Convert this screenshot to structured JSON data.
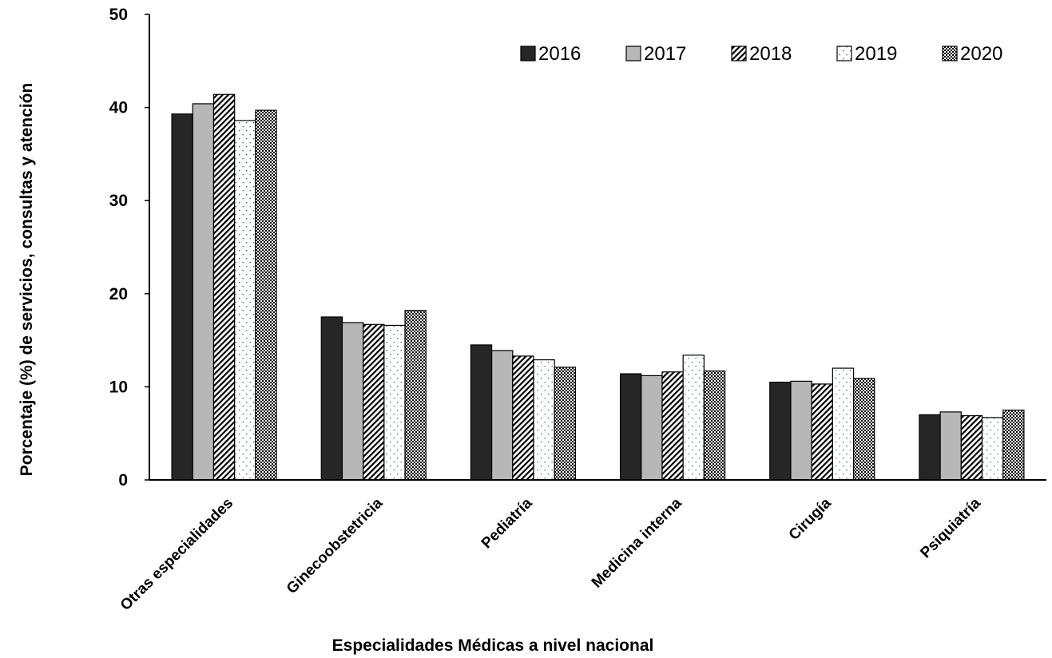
{
  "chart_data": {
    "type": "bar",
    "title": "",
    "xlabel": "Especialidades Médicas a nivel nacional",
    "ylabel": "Porcentaje (%) de servicios, consultas y atención",
    "ylim": [
      0,
      50
    ],
    "yticks": [
      0,
      10,
      20,
      30,
      40,
      50
    ],
    "grid": false,
    "legend_position": "top-right",
    "categories": [
      "Otras especialidades",
      "Ginecoobstetricia",
      "Pediatría",
      "Medicina interna",
      "Cirugía",
      "Psiquiatría"
    ],
    "series": [
      {
        "name": "2016",
        "values": [
          39.3,
          17.5,
          14.5,
          11.4,
          10.5,
          7.0
        ],
        "fill": "solid-dark",
        "color": "#262626"
      },
      {
        "name": "2017",
        "values": [
          40.4,
          16.9,
          13.9,
          11.2,
          10.6,
          7.3
        ],
        "fill": "solid-gray",
        "color": "#b7b7b7"
      },
      {
        "name": "2018",
        "values": [
          41.4,
          16.7,
          13.3,
          11.6,
          10.3,
          6.9
        ],
        "fill": "diagonal-hatch",
        "color": "#000000"
      },
      {
        "name": "2019",
        "values": [
          38.6,
          16.6,
          12.9,
          13.4,
          12.0,
          6.7
        ],
        "fill": "dots",
        "color": "#2f5f7f"
      },
      {
        "name": "2020",
        "values": [
          39.7,
          18.2,
          12.1,
          11.7,
          10.9,
          7.5
        ],
        "fill": "checker",
        "color": "#000000"
      }
    ]
  }
}
